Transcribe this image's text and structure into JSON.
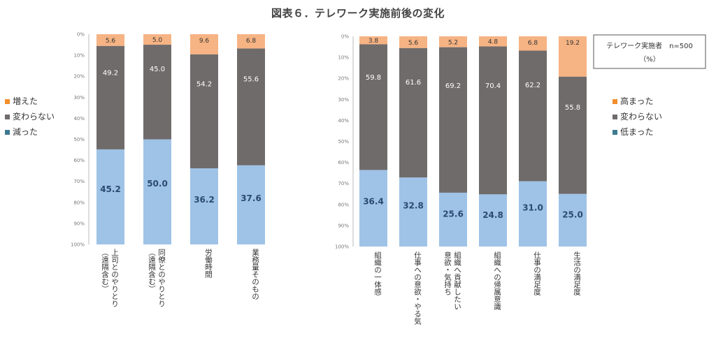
{
  "title": "図表６．テレワーク実施前後の変化",
  "colors": {
    "top": "#f6b383",
    "top_legend": "#f28e2c",
    "mid": "#706b6b",
    "bottom": "#9fc3e7",
    "bottom_legend": "#3d7a92",
    "axis": "#bbbbbb"
  },
  "chart_data": [
    {
      "type": "bar",
      "stacked": true,
      "title": "",
      "ylim": [
        0,
        100
      ],
      "yticks": [
        "0%",
        "10%",
        "20%",
        "30%",
        "40%",
        "50%",
        "60%",
        "70%",
        "80%",
        "90%",
        "100%"
      ],
      "categories": [
        [
          "上司とのやりとり",
          "（遠隔含む）"
        ],
        [
          "同僚とのやりとり",
          "（遠隔含む）"
        ],
        [
          "労働時間"
        ],
        [
          "業務量そのもの"
        ]
      ],
      "series": [
        {
          "name": "増えた",
          "values": [
            5.6,
            5.0,
            9.6,
            6.8
          ]
        },
        {
          "name": "変わらない",
          "values": [
            49.2,
            45.0,
            54.2,
            55.6
          ]
        },
        {
          "name": "減った",
          "values": [
            45.2,
            50.0,
            36.2,
            37.6
          ]
        }
      ],
      "legend": [
        "増えた",
        "変わらない",
        "減った"
      ],
      "legend_position": "left"
    },
    {
      "type": "bar",
      "stacked": true,
      "title": "",
      "ylim": [
        0,
        100
      ],
      "yticks": [
        "0%",
        "10%",
        "20%",
        "30%",
        "40%",
        "50%",
        "60%",
        "70%",
        "80%",
        "90%",
        "100%"
      ],
      "categories": [
        [
          "組織の一体感"
        ],
        [
          "仕事への意欲・やる気"
        ],
        [
          "組織へ貢献したい",
          "意欲・気持ち"
        ],
        [
          "組織への帰属意識"
        ],
        [
          "仕事の満足度"
        ],
        [
          "生活の満足度"
        ]
      ],
      "series": [
        {
          "name": "高まった",
          "values": [
            3.8,
            5.6,
            5.2,
            4.8,
            6.8,
            19.2
          ]
        },
        {
          "name": "変わらない",
          "values": [
            59.8,
            61.6,
            69.2,
            70.4,
            62.2,
            55.8
          ]
        },
        {
          "name": "低まった",
          "values": [
            36.4,
            32.8,
            25.6,
            24.8,
            31.0,
            25.0
          ]
        }
      ],
      "legend": [
        "高まった",
        "変わらない",
        "低まった"
      ],
      "legend_position": "right"
    }
  ],
  "note": {
    "line1": "テレワーク実施者　n=500",
    "line2": "（%）"
  }
}
